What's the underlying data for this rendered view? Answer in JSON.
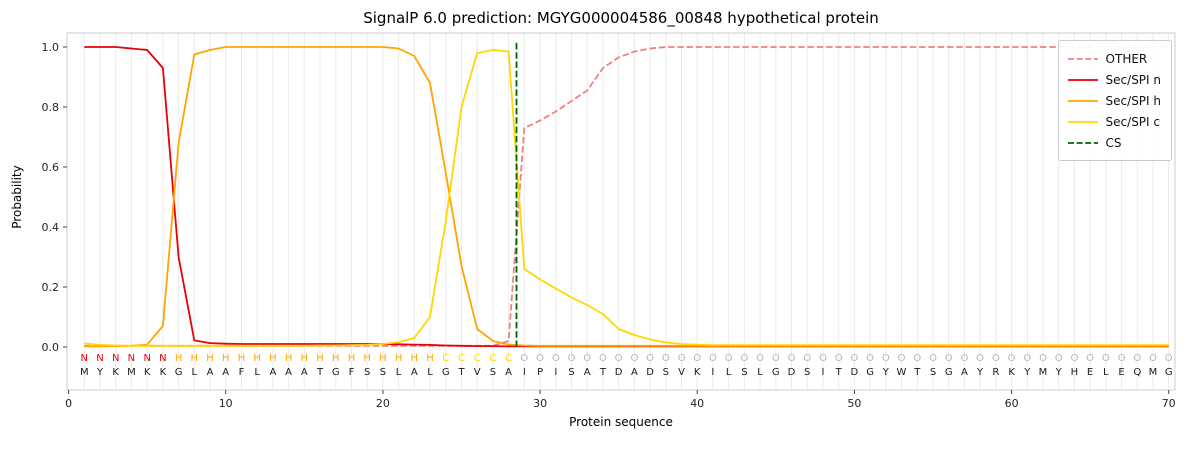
{
  "title": "SignalP 6.0 prediction: MGYG000004586_00848 hypothetical protein",
  "chart_data": {
    "type": "line",
    "title": "SignalP 6.0 prediction: MGYG000004586_00848 hypothetical protein",
    "xlabel": "Protein sequence",
    "ylabel": "Probability",
    "xlim": [
      -0.1,
      70.4
    ],
    "ylim": [
      -0.14,
      1.05
    ],
    "x_ticks": [
      0,
      10,
      20,
      30,
      40,
      50,
      60,
      70
    ],
    "y_ticks": [
      "0.0",
      "0.2",
      "0.4",
      "0.6",
      "0.8",
      "1.0"
    ],
    "grid": "vertical-line-per-residue",
    "legend_position": "upper right",
    "sequence": "MYKMKKGLAAFLAAATGFSSLALGTVSAIPISATDADSVKILSLGDSITDGYWTSGAYRKYMYHELEQMG",
    "regions": [
      {
        "letter": "N",
        "color": "#e8000b",
        "start": 1,
        "end": 6
      },
      {
        "letter": "H",
        "color": "#ffa500",
        "start": 7,
        "end": 23
      },
      {
        "letter": "C",
        "color": "#ffd700",
        "start": 24,
        "end": 28
      },
      {
        "letter": "O",
        "color": "#b5b5b5",
        "start": 29,
        "end": 70
      }
    ],
    "series": [
      {
        "key": "other",
        "name": "OTHER",
        "color": "#f08080",
        "dash": true,
        "values": [
          0.004,
          0.004,
          0.004,
          0.004,
          0.004,
          0.004,
          0.004,
          0.004,
          0.004,
          0.004,
          0.004,
          0.004,
          0.004,
          0.004,
          0.004,
          0.004,
          0.004,
          0.004,
          0.004,
          0.004,
          0.004,
          0.004,
          0.004,
          0.004,
          0.004,
          0.004,
          0.004,
          0.02,
          0.73,
          0.755,
          0.785,
          0.82,
          0.855,
          0.93,
          0.965,
          0.985,
          0.995,
          1.0,
          1.0,
          1.0,
          1.0,
          1.0,
          1.0,
          1.0,
          1.0,
          1.0,
          1.0,
          1.0,
          1.0,
          1.0,
          1.0,
          1.0,
          1.0,
          1.0,
          1.0,
          1.0,
          1.0,
          1.0,
          1.0,
          1.0,
          1.0,
          1.0,
          1.0,
          1.0,
          1.0,
          1.0,
          1.0,
          1.0,
          1.0,
          1.0
        ]
      },
      {
        "key": "sec_spi_n",
        "name": "Sec/SPI n",
        "color": "#e8000b",
        "dash": false,
        "values": [
          1.0,
          1.0,
          1.0,
          0.995,
          0.99,
          0.93,
          0.3,
          0.022,
          0.013,
          0.011,
          0.01,
          0.01,
          0.01,
          0.01,
          0.01,
          0.01,
          0.01,
          0.01,
          0.01,
          0.01,
          0.009,
          0.008,
          0.007,
          0.005,
          0.004,
          0.003,
          0.003,
          0.002,
          0.002,
          0.002,
          0.002,
          0.002,
          0.002,
          0.002,
          0.002,
          0.002,
          0.002,
          0.002,
          0.002,
          0.002,
          0.002,
          0.002,
          0.002,
          0.002,
          0.002,
          0.002,
          0.002,
          0.002,
          0.002,
          0.002,
          0.002,
          0.002,
          0.002,
          0.002,
          0.002,
          0.002,
          0.002,
          0.002,
          0.002,
          0.002,
          0.002,
          0.002,
          0.002,
          0.002,
          0.002,
          0.002,
          0.002,
          0.002,
          0.002,
          0.002
        ]
      },
      {
        "key": "sec_spi_h",
        "name": "Sec/SPI h",
        "color": "#ffa500",
        "dash": false,
        "values": [
          0.002,
          0.002,
          0.003,
          0.004,
          0.008,
          0.07,
          0.68,
          0.975,
          0.99,
          1.0,
          1.0,
          1.0,
          1.0,
          1.0,
          1.0,
          1.0,
          1.0,
          1.0,
          1.0,
          1.0,
          0.995,
          0.97,
          0.88,
          0.58,
          0.27,
          0.06,
          0.02,
          0.008,
          0.005,
          0.004,
          0.004,
          0.004,
          0.004,
          0.004,
          0.004,
          0.004,
          0.004,
          0.004,
          0.004,
          0.004,
          0.004,
          0.004,
          0.004,
          0.004,
          0.004,
          0.004,
          0.004,
          0.004,
          0.004,
          0.004,
          0.004,
          0.004,
          0.004,
          0.004,
          0.004,
          0.004,
          0.004,
          0.004,
          0.004,
          0.004,
          0.004,
          0.004,
          0.004,
          0.004,
          0.004,
          0.004,
          0.004,
          0.004,
          0.004,
          0.004
        ]
      },
      {
        "key": "sec_spi_c",
        "name": "Sec/SPI c",
        "color": "#ffd700",
        "dash": false,
        "values": [
          0.012,
          0.007,
          0.005,
          0.004,
          0.004,
          0.004,
          0.004,
          0.004,
          0.004,
          0.004,
          0.004,
          0.004,
          0.004,
          0.004,
          0.004,
          0.005,
          0.005,
          0.006,
          0.007,
          0.01,
          0.016,
          0.03,
          0.1,
          0.42,
          0.8,
          0.98,
          0.99,
          0.985,
          0.26,
          0.225,
          0.195,
          0.165,
          0.14,
          0.11,
          0.06,
          0.04,
          0.025,
          0.015,
          0.01,
          0.008,
          0.006,
          0.006,
          0.006,
          0.006,
          0.006,
          0.006,
          0.006,
          0.006,
          0.006,
          0.006,
          0.006,
          0.006,
          0.006,
          0.006,
          0.006,
          0.006,
          0.006,
          0.006,
          0.006,
          0.006,
          0.006,
          0.006,
          0.006,
          0.006,
          0.006,
          0.006,
          0.006,
          0.006,
          0.006,
          0.006
        ]
      }
    ],
    "cs": {
      "key": "cs",
      "label": "CS",
      "color": "#006400",
      "position": 28.5
    },
    "legend": [
      {
        "key": "other",
        "label": "OTHER",
        "color": "#f08080",
        "dash": true
      },
      {
        "key": "sec-spi-n",
        "label": "Sec/SPI n",
        "color": "#e8000b",
        "dash": false
      },
      {
        "key": "sec-spi-h",
        "label": "Sec/SPI h",
        "color": "#ffa500",
        "dash": false
      },
      {
        "key": "sec-spi-c",
        "label": "Sec/SPI c",
        "color": "#ffd700",
        "dash": false
      },
      {
        "key": "cs",
        "label": "CS",
        "color": "#006400",
        "dash": true
      }
    ],
    "colors": {
      "background": "#ffffff",
      "grid": "#ebebeb",
      "spine": "#cccccc",
      "tick": "#444444",
      "sequence_text": "#1a1a1a"
    }
  }
}
